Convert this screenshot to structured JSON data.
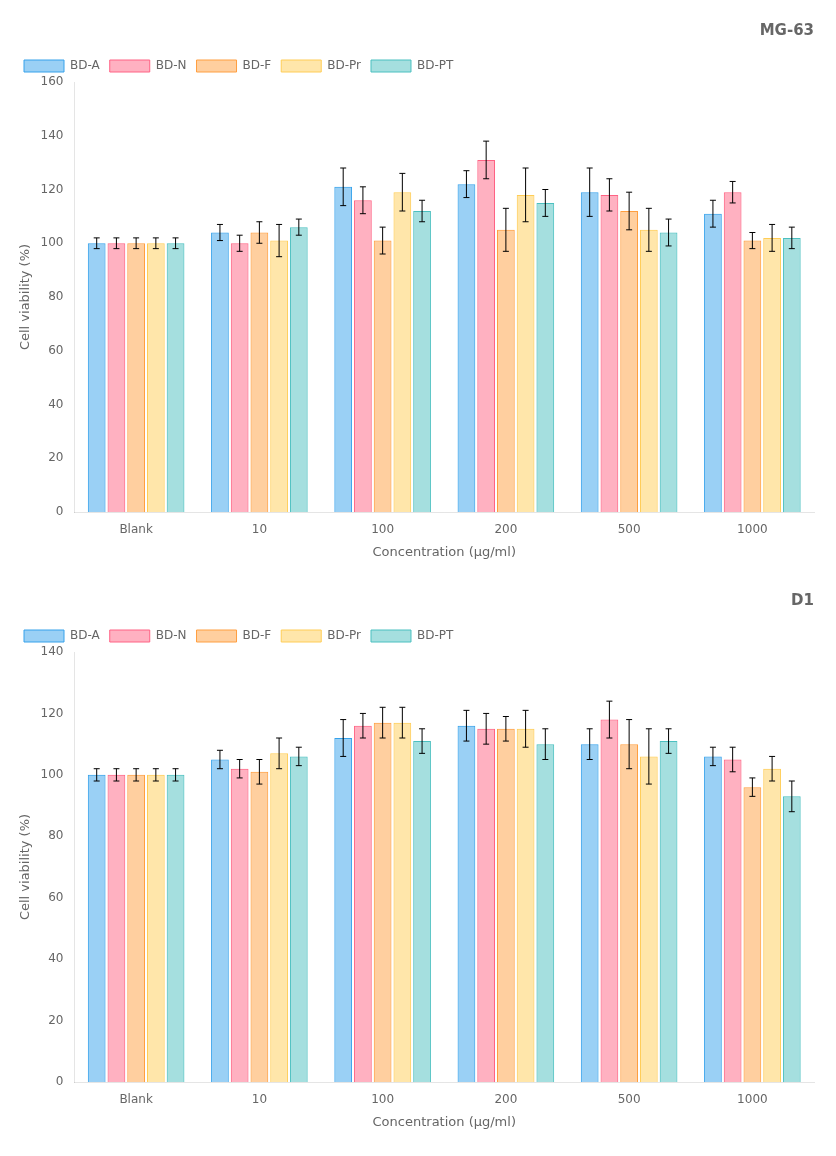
{
  "chart_data": [
    {
      "type": "bar",
      "title": "MG-63",
      "xlabel": "Concentration (μg/ml)",
      "ylabel": "Cell viability (%)",
      "categories": [
        "Blank",
        "10",
        "100",
        "200",
        "500",
        "1000"
      ],
      "series": [
        {
          "name": "BD-A",
          "values": [
            100,
            104,
            121,
            122,
            119,
            111
          ],
          "errors": [
            2,
            3,
            7,
            5,
            9,
            5
          ]
        },
        {
          "name": "BD-N",
          "values": [
            100,
            100,
            116,
            131,
            118,
            119
          ],
          "errors": [
            2,
            3,
            5,
            7,
            6,
            4
          ]
        },
        {
          "name": "BD-F",
          "values": [
            100,
            104,
            101,
            105,
            112,
            101
          ],
          "errors": [
            2,
            4,
            5,
            8,
            7,
            3
          ]
        },
        {
          "name": "BD-Pr",
          "values": [
            100,
            101,
            119,
            118,
            105,
            102
          ],
          "errors": [
            2,
            6,
            7,
            10,
            8,
            5
          ]
        },
        {
          "name": "BD-PT",
          "values": [
            100,
            106,
            112,
            115,
            104,
            102
          ],
          "errors": [
            2,
            3,
            4,
            5,
            5,
            4
          ]
        }
      ],
      "ylim": [
        0,
        160
      ],
      "yticks": [
        0,
        20,
        40,
        60,
        80,
        100,
        120,
        140,
        160
      ],
      "grid": false,
      "legend": "upper left"
    },
    {
      "type": "bar",
      "title": "D1",
      "xlabel": "Concentration (μg/ml)",
      "ylabel": "Cell viability (%)",
      "categories": [
        "Blank",
        "10",
        "100",
        "200",
        "500",
        "1000"
      ],
      "series": [
        {
          "name": "BD-A",
          "values": [
            100,
            105,
            112,
            116,
            110,
            106
          ],
          "errors": [
            2,
            3,
            6,
            5,
            5,
            3
          ]
        },
        {
          "name": "BD-N",
          "values": [
            100,
            102,
            116,
            115,
            118,
            105
          ],
          "errors": [
            2,
            3,
            4,
            5,
            6,
            4
          ]
        },
        {
          "name": "BD-F",
          "values": [
            100,
            101,
            117,
            115,
            110,
            96
          ],
          "errors": [
            2,
            4,
            5,
            4,
            8,
            3
          ]
        },
        {
          "name": "BD-Pr",
          "values": [
            100,
            107,
            117,
            115,
            106,
            102
          ],
          "errors": [
            2,
            5,
            5,
            6,
            9,
            4
          ]
        },
        {
          "name": "BD-PT",
          "values": [
            100,
            106,
            111,
            110,
            111,
            93
          ],
          "errors": [
            2,
            3,
            4,
            5,
            4,
            5
          ]
        }
      ],
      "ylim": [
        0,
        140
      ],
      "yticks": [
        0,
        20,
        40,
        60,
        80,
        100,
        120,
        140
      ],
      "grid": false,
      "legend": "upper left"
    }
  ]
}
